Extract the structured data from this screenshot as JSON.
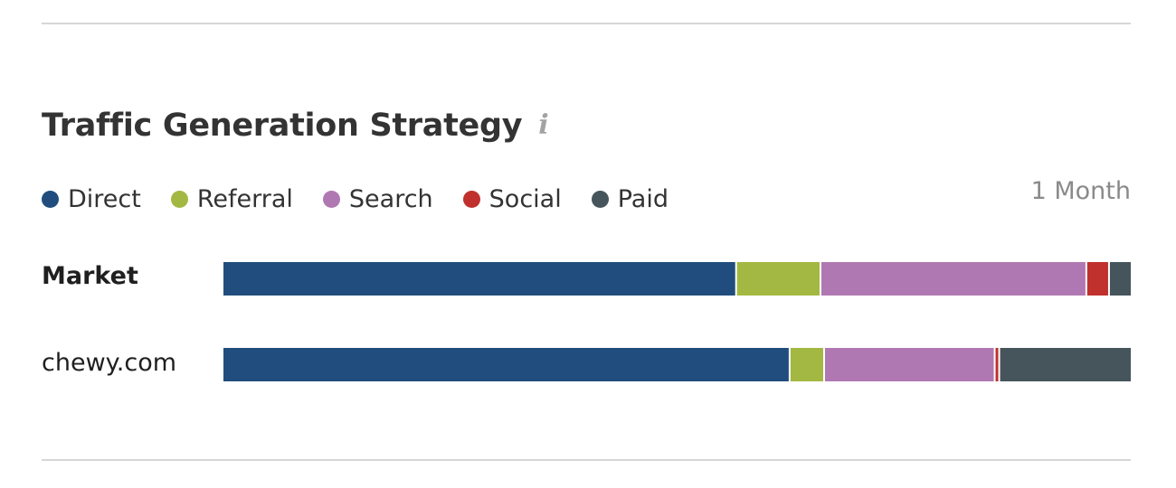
{
  "title": "Traffic Generation Strategy",
  "info_icon": "info-icon",
  "period": "1 Month",
  "chart_data": {
    "type": "bar",
    "orientation": "horizontal",
    "stacked": true,
    "normalized_percent": true,
    "categories": [
      "Market",
      "chewy.com"
    ],
    "series": [
      {
        "name": "Direct",
        "color": "#204d7d",
        "values": [
          56.6,
          62.5
        ]
      },
      {
        "name": "Referral",
        "color": "#a3b842",
        "values": [
          9.3,
          3.8
        ]
      },
      {
        "name": "Search",
        "color": "#b078b2",
        "values": [
          29.3,
          18.8
        ]
      },
      {
        "name": "Social",
        "color": "#c0302c",
        "values": [
          2.5,
          0.5
        ]
      },
      {
        "name": "Paid",
        "color": "#46545b",
        "values": [
          2.3,
          14.4
        ]
      }
    ],
    "legend_position": "top-left",
    "grid": false
  }
}
